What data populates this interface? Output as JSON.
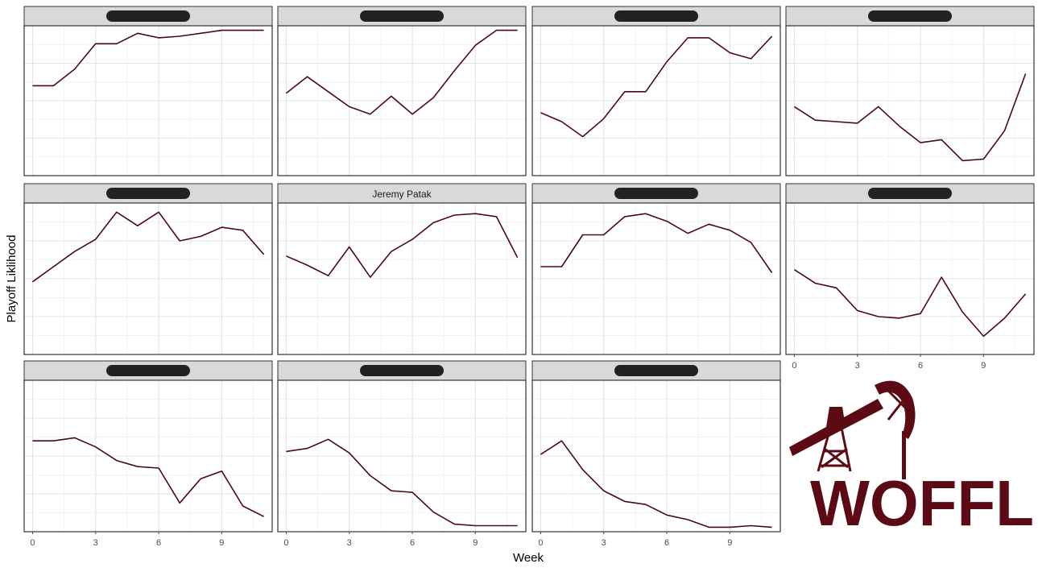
{
  "chart_data": {
    "type": "line",
    "facet_layout": "4 columns x 3 rows",
    "xlabel": "Week",
    "ylabel": "Playoff Liklihood",
    "x_ticks": [
      0,
      3,
      6,
      9
    ],
    "xlim": [
      -0.4,
      11.4
    ],
    "ylim": [
      0,
      100
    ],
    "y_tick_labels_shown": false,
    "grid": true,
    "line_color": "#4a0a12",
    "strip_fill": "#d9d9d9",
    "panels": [
      {
        "title": "",
        "redacted": true,
        "values": [
          60,
          60,
          71,
          88,
          88,
          95,
          92,
          93,
          95,
          97,
          97,
          97
        ]
      },
      {
        "title": "",
        "redacted": true,
        "values": [
          55,
          66,
          56,
          46,
          41,
          53,
          41,
          52,
          70,
          87,
          97,
          97
        ]
      },
      {
        "title": "",
        "redacted": true,
        "values": [
          42,
          36,
          26,
          38,
          56,
          56,
          76,
          92,
          92,
          82,
          78,
          93
        ]
      },
      {
        "title": "",
        "redacted": true,
        "values": [
          46,
          37,
          36,
          35,
          46,
          33,
          22,
          24,
          10,
          11,
          30,
          68
        ]
      },
      {
        "title": "",
        "redacted": true,
        "values": [
          48,
          58,
          68,
          76,
          94,
          85,
          94,
          75,
          78,
          84,
          82,
          66
        ]
      },
      {
        "title": "Jeremy Patak",
        "redacted": false,
        "values": [
          65,
          59,
          52,
          71,
          51,
          68,
          76,
          87,
          92,
          93,
          91,
          64
        ]
      },
      {
        "title": "",
        "redacted": true,
        "values": [
          58,
          58,
          79,
          79,
          91,
          93,
          88,
          80,
          86,
          82,
          74,
          54
        ]
      },
      {
        "title": "",
        "redacted": true,
        "values": [
          56,
          47,
          44,
          29,
          25,
          24,
          27,
          51,
          28,
          12,
          24,
          40
        ]
      },
      {
        "title": "",
        "redacted": true,
        "values": [
          60,
          60,
          62,
          56,
          47,
          43,
          42,
          19,
          35,
          40,
          17,
          10
        ]
      },
      {
        "title": "",
        "redacted": true,
        "values": [
          53,
          55,
          61,
          52,
          37,
          27,
          26,
          13,
          5,
          4,
          4,
          4
        ]
      },
      {
        "title": "",
        "redacted": true,
        "values": [
          51,
          60,
          41,
          27,
          20,
          18,
          11,
          8,
          3,
          3,
          4,
          3
        ]
      }
    ]
  },
  "logo": {
    "text": "WOFFL",
    "color": "#5c0a14"
  }
}
